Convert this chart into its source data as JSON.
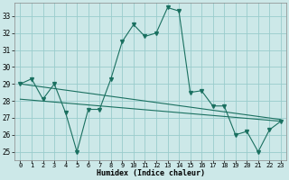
{
  "xlabel": "Humidex (Indice chaleur)",
  "bg_color": "#cce8e8",
  "grid_color": "#99cccc",
  "line_color": "#1a7060",
  "x_ticks": [
    0,
    1,
    2,
    3,
    4,
    5,
    6,
    7,
    8,
    9,
    10,
    11,
    12,
    13,
    14,
    15,
    16,
    17,
    18,
    19,
    20,
    21,
    22,
    23
  ],
  "y_ticks": [
    25,
    26,
    27,
    28,
    29,
    30,
    31,
    32,
    33
  ],
  "ylim": [
    24.5,
    33.8
  ],
  "xlim": [
    -0.5,
    23.5
  ],
  "main_y": [
    29.0,
    29.3,
    28.1,
    29.0,
    27.3,
    25.0,
    27.5,
    27.5,
    29.3,
    31.5,
    32.5,
    31.8,
    32.0,
    33.5,
    33.3,
    28.5,
    28.6,
    27.7,
    27.7,
    26.0,
    26.2,
    25.0,
    26.3,
    26.8
  ],
  "trend1_x": [
    0,
    23
  ],
  "trend1_y": [
    29.0,
    26.9
  ],
  "trend2_x": [
    0,
    23
  ],
  "trend2_y": [
    28.1,
    26.8
  ]
}
